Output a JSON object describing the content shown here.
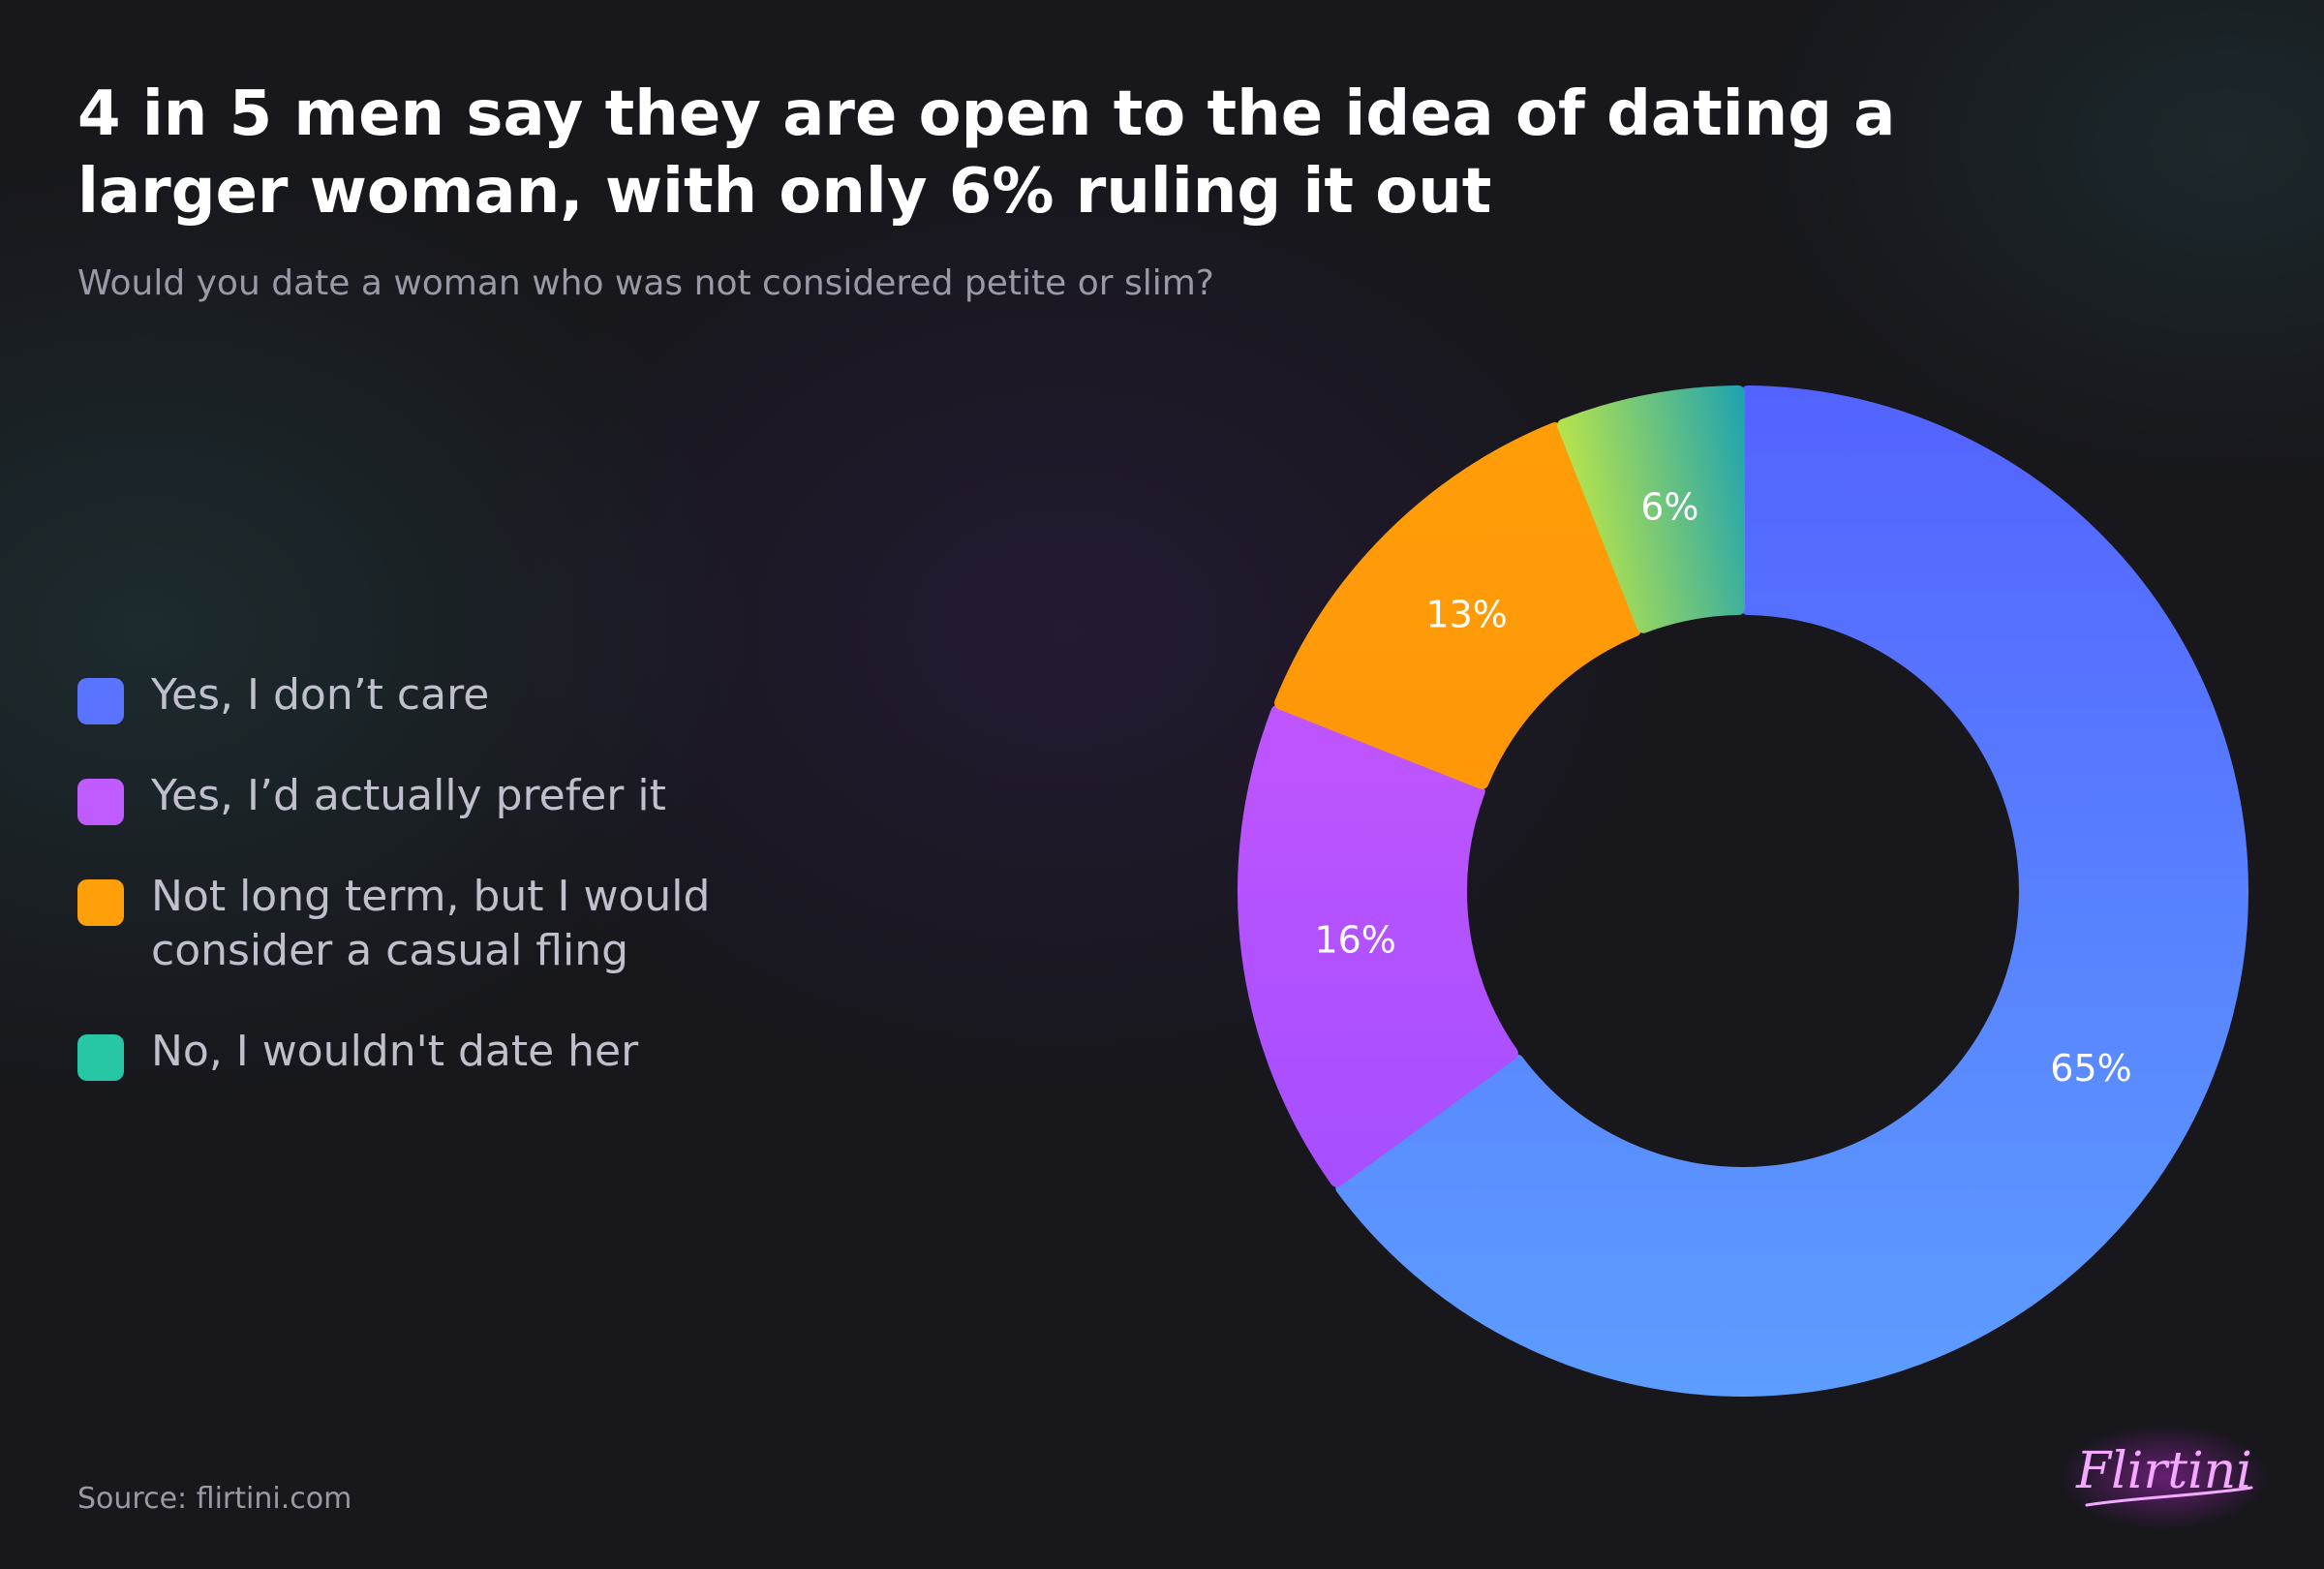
{
  "header": {
    "title": "4 in 5 men say they are open to the idea of dating a larger woman, with only 6% ruling it out",
    "subtitle": "Would you date a woman who was not considered petite or slim?"
  },
  "legend": [
    {
      "label": "Yes, I don’t care",
      "color": "#5a74ff"
    },
    {
      "label": "Yes, I’d actually prefer it",
      "color": "#c05cff"
    },
    {
      "label": "Not long term, but I would consider a casual fling",
      "color": "#ff9f0a"
    },
    {
      "label": "No, I wouldn't date her",
      "color": "#27c7a6"
    }
  ],
  "chart_data": {
    "type": "pie",
    "variant": "donut",
    "title": "4 in 5 men say they are open to the idea of dating a larger woman, with only 6% ruling it out",
    "subtitle": "Would you date a woman who was not considered petite or slim?",
    "legend_position": "left",
    "slices": [
      {
        "label": "Yes, I don’t care",
        "value": 65,
        "display": "65%",
        "color_start": "#5363ff",
        "color_end": "#5d9dff"
      },
      {
        "label": "Yes, I’d actually prefer it",
        "value": 16,
        "display": "16%",
        "color_start": "#d059ff",
        "color_end": "#9b4cff"
      },
      {
        "label": "Not long term, but I would consider a casual fling",
        "value": 13,
        "display": "13%",
        "color_start": "#ff9e08",
        "color_end": "#ff8c0a"
      },
      {
        "label": "No, I wouldn't date her",
        "value": 6,
        "display": "6%",
        "color_start": "#b6e34c",
        "color_end": "#1fa3b0"
      }
    ]
  },
  "footer": {
    "source": "Source: flirtini.com",
    "logo_text": "Flirtini",
    "logo_color": "#f4a8ff"
  }
}
